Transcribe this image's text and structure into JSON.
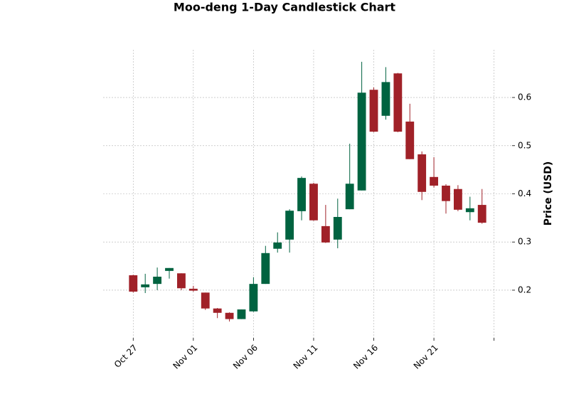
{
  "chart_data": {
    "type": "candlestick",
    "title": "Moo-deng 1-Day Candlestick Chart",
    "y_label": "Price (USD)",
    "x": [
      0,
      1,
      2,
      3,
      4,
      5,
      6,
      7,
      8,
      9,
      10,
      11,
      12,
      13,
      14,
      15,
      16,
      17,
      18,
      19,
      20,
      21,
      22,
      23,
      24,
      25,
      26,
      27,
      28,
      29
    ],
    "open": [
      0.231,
      0.206,
      0.213,
      0.24,
      0.235,
      0.203,
      0.195,
      0.162,
      0.153,
      0.14,
      0.156,
      0.213,
      0.286,
      0.305,
      0.364,
      0.421,
      0.333,
      0.305,
      0.368,
      0.407,
      0.616,
      0.562,
      0.65,
      0.55,
      0.482,
      0.435,
      0.417,
      0.41,
      0.362,
      0.377
    ],
    "high": [
      0.232,
      0.234,
      0.247,
      0.246,
      0.235,
      0.209,
      0.195,
      0.163,
      0.154,
      0.16,
      0.227,
      0.292,
      0.32,
      0.368,
      0.436,
      0.423,
      0.377,
      0.39,
      0.504,
      0.674,
      0.621,
      0.663,
      0.651,
      0.587,
      0.488,
      0.476,
      0.42,
      0.418,
      0.394,
      0.41
    ],
    "low": [
      0.195,
      0.194,
      0.2,
      0.224,
      0.2,
      0.197,
      0.159,
      0.142,
      0.135,
      0.14,
      0.155,
      0.213,
      0.278,
      0.278,
      0.345,
      0.344,
      0.298,
      0.287,
      0.368,
      0.407,
      0.528,
      0.554,
      0.528,
      0.472,
      0.387,
      0.413,
      0.359,
      0.364,
      0.345,
      0.338
    ],
    "close": [
      0.197,
      0.212,
      0.228,
      0.246,
      0.204,
      0.199,
      0.162,
      0.153,
      0.14,
      0.16,
      0.213,
      0.277,
      0.299,
      0.365,
      0.433,
      0.345,
      0.299,
      0.352,
      0.421,
      0.61,
      0.529,
      0.632,
      0.529,
      0.472,
      0.404,
      0.417,
      0.385,
      0.367,
      0.37,
      0.34
    ],
    "up_color": "#006340",
    "down_color": "#a02128",
    "xlim": [
      -2.5,
      31.5
    ],
    "xticks": [
      {
        "value": 0,
        "label": "Oct 27"
      },
      {
        "value": 5,
        "label": "Nov 01"
      },
      {
        "value": 10,
        "label": "Nov 06"
      },
      {
        "value": 15,
        "label": "Nov 11"
      },
      {
        "value": 20,
        "label": "Nov 16"
      },
      {
        "value": 25,
        "label": "Nov 21"
      },
      {
        "value": 30,
        "label": null
      }
    ],
    "ylim": [
      0.101,
      0.699
    ],
    "yticks": [
      0.2,
      0.3,
      0.4,
      0.5,
      0.6
    ],
    "grid": true
  }
}
